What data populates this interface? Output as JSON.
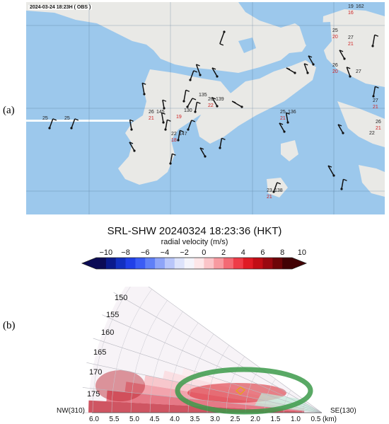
{
  "panel_labels": {
    "a": "(a)",
    "b": "(b)"
  },
  "map": {
    "timestamp": "2024-03-24 18:23H ( OBS )",
    "stations": [
      {
        "id": "s1",
        "t": "19",
        "u": "162",
        "h": "16"
      },
      {
        "id": "s2",
        "t": "25",
        "u": "",
        "h": "20"
      },
      {
        "id": "s3",
        "t": "27",
        "u": "",
        "h": "21"
      },
      {
        "id": "s4",
        "t": "26",
        "u": "",
        "h": "20"
      },
      {
        "id": "s5",
        "t": "27",
        "u": "",
        "h": ""
      },
      {
        "id": "s6",
        "t": "27",
        "u": "",
        "h": "21"
      },
      {
        "id": "s7",
        "t": "26",
        "u": "",
        "h": "21"
      },
      {
        "id": "s8",
        "t": "22",
        "u": "",
        "h": ""
      },
      {
        "id": "s9",
        "t": "25",
        "u": "",
        "h": ""
      },
      {
        "id": "s10",
        "t": "25",
        "u": "",
        "h": ""
      },
      {
        "id": "s11",
        "t": "26",
        "u": "145",
        "h": "21"
      },
      {
        "id": "s12",
        "t": "",
        "u": "135",
        "h": ""
      },
      {
        "id": "s13",
        "t": "26",
        "u": "139",
        "h": "22"
      },
      {
        "id": "s14",
        "t": "",
        "u": "130",
        "h": "19"
      },
      {
        "id": "s15",
        "t": "22",
        "u": "147",
        "h": "18"
      },
      {
        "id": "s16",
        "t": "25",
        "u": "136",
        "h": "21"
      },
      {
        "id": "s17",
        "t": "23",
        "u": "138",
        "h": "21"
      }
    ]
  },
  "colorbar": {
    "title": "SRL-SHW 20240324 18:23:36 (HKT)",
    "label": "radial velocity (m/s)",
    "ticks": [
      "−10",
      "−8",
      "−6",
      "−4",
      "−2",
      "0",
      "2",
      "4",
      "6",
      "8",
      "10"
    ],
    "colors": [
      "#0b0b55",
      "#0a1a8c",
      "#1230c0",
      "#2040e8",
      "#3a5cf5",
      "#5f7ff7",
      "#8ea4f8",
      "#b9c6fa",
      "#dde3fb",
      "#f4f4fb",
      "#fde6e8",
      "#fbc4c8",
      "#f89aa0",
      "#f46a74",
      "#ef3c48",
      "#e01a24",
      "#c20d15",
      "#9a0810",
      "#6e0508",
      "#420204"
    ]
  },
  "radar": {
    "azimuth_labels": [
      "150",
      "155",
      "160",
      "165",
      "170",
      "175"
    ],
    "range_labels": [
      "6.0",
      "5.5",
      "5.0",
      "4.5",
      "4.0",
      "3.5",
      "3.0",
      "2.5",
      "2.0",
      "1.5",
      "1.0",
      "0.5"
    ],
    "left_label": "NW(310)",
    "right_label": "SE(130)",
    "unit": "(km)"
  }
}
